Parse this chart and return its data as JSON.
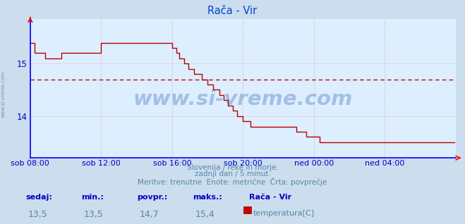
{
  "title": "Rača - Vir",
  "bg_color": "#ccdded",
  "plot_bg_color": "#ddeeff",
  "line_color": "#bb0000",
  "avg_line_color": "#cc0000",
  "avg_value": 14.7,
  "grid_color": "#ddaaaa",
  "axis_color": "#0000cc",
  "text_color": "#5588aa",
  "title_color": "#0044cc",
  "y_min": 13.2,
  "y_max": 15.85,
  "y_ticks": [
    14,
    15
  ],
  "x_labels": [
    "sob 08:00",
    "sob 12:00",
    "sob 16:00",
    "sob 20:00",
    "ned 00:00",
    "ned 04:00"
  ],
  "x_tick_positions": [
    0,
    48,
    96,
    144,
    192,
    240
  ],
  "total_points": 288,
  "footer_line1": "Slovenija / reke in morje.",
  "footer_line2": "zadnji dan / 5 minut.",
  "footer_line3": "Meritve: trenutne  Enote: metrične  Črta: povprečje",
  "label_sedaj": "sedaj:",
  "label_min": "min.:",
  "label_povpr": "povpr.:",
  "label_maks": "maks.:",
  "val_sedaj": "13,5",
  "val_min": "13,5",
  "val_povpr": "14,7",
  "val_maks": "15,4",
  "station_name": "Rača - Vir",
  "legend_label": "temperatura[C]",
  "watermark": "www.si-vreme.com",
  "watermark_color": "#2255aa",
  "watermark_alpha": 0.3,
  "temperature_data": [
    15.4,
    15.4,
    15.4,
    15.2,
    15.2,
    15.2,
    15.2,
    15.2,
    15.2,
    15.2,
    15.1,
    15.1,
    15.1,
    15.1,
    15.1,
    15.1,
    15.1,
    15.1,
    15.1,
    15.1,
    15.1,
    15.2,
    15.2,
    15.2,
    15.2,
    15.2,
    15.2,
    15.2,
    15.2,
    15.2,
    15.2,
    15.2,
    15.2,
    15.2,
    15.2,
    15.2,
    15.2,
    15.2,
    15.2,
    15.2,
    15.2,
    15.2,
    15.2,
    15.2,
    15.2,
    15.2,
    15.2,
    15.2,
    15.4,
    15.4,
    15.4,
    15.4,
    15.4,
    15.4,
    15.4,
    15.4,
    15.4,
    15.4,
    15.4,
    15.4,
    15.4,
    15.4,
    15.4,
    15.4,
    15.4,
    15.4,
    15.4,
    15.4,
    15.4,
    15.4,
    15.4,
    15.4,
    15.4,
    15.4,
    15.4,
    15.4,
    15.4,
    15.4,
    15.4,
    15.4,
    15.4,
    15.4,
    15.4,
    15.4,
    15.4,
    15.4,
    15.4,
    15.4,
    15.4,
    15.4,
    15.4,
    15.4,
    15.4,
    15.4,
    15.4,
    15.4,
    15.3,
    15.3,
    15.3,
    15.2,
    15.2,
    15.1,
    15.1,
    15.1,
    15.0,
    15.0,
    15.0,
    14.9,
    14.9,
    14.9,
    14.9,
    14.8,
    14.8,
    14.8,
    14.8,
    14.8,
    14.7,
    14.7,
    14.7,
    14.7,
    14.6,
    14.6,
    14.6,
    14.6,
    14.5,
    14.5,
    14.5,
    14.5,
    14.4,
    14.4,
    14.4,
    14.3,
    14.3,
    14.3,
    14.2,
    14.2,
    14.2,
    14.1,
    14.1,
    14.1,
    14.0,
    14.0,
    14.0,
    14.0,
    13.9,
    13.9,
    13.9,
    13.9,
    13.9,
    13.8,
    13.8,
    13.8,
    13.8,
    13.8,
    13.8,
    13.8,
    13.8,
    13.8,
    13.8,
    13.8,
    13.8,
    13.8,
    13.8,
    13.8,
    13.8,
    13.8,
    13.8,
    13.8,
    13.8,
    13.8,
    13.8,
    13.8,
    13.8,
    13.8,
    13.8,
    13.8,
    13.8,
    13.8,
    13.8,
    13.8,
    13.7,
    13.7,
    13.7,
    13.7,
    13.7,
    13.7,
    13.7,
    13.6,
    13.6,
    13.6,
    13.6,
    13.6,
    13.6,
    13.6,
    13.6,
    13.6,
    13.5,
    13.5,
    13.5,
    13.5,
    13.5,
    13.5,
    13.5,
    13.5,
    13.5,
    13.5,
    13.5,
    13.5,
    13.5,
    13.5,
    13.5,
    13.5,
    13.5,
    13.5,
    13.5,
    13.5,
    13.5,
    13.5,
    13.5,
    13.5,
    13.5,
    13.5,
    13.5,
    13.5,
    13.5,
    13.5,
    13.5,
    13.5,
    13.5,
    13.5,
    13.5,
    13.5,
    13.5,
    13.5,
    13.5,
    13.5,
    13.5,
    13.5,
    13.5,
    13.5,
    13.5,
    13.5,
    13.5,
    13.5,
    13.5,
    13.5,
    13.5,
    13.5,
    13.5,
    13.5,
    13.5,
    13.5,
    13.5,
    13.5,
    13.5,
    13.5,
    13.5,
    13.5,
    13.5,
    13.5,
    13.5,
    13.5,
    13.5,
    13.5,
    13.5,
    13.5,
    13.5,
    13.5,
    13.5,
    13.5,
    13.5,
    13.5,
    13.5,
    13.5,
    13.5,
    13.5,
    13.5,
    13.5,
    13.5,
    13.5,
    13.5,
    13.5,
    13.5,
    13.5,
    13.5,
    13.5,
    13.5,
    13.5
  ]
}
